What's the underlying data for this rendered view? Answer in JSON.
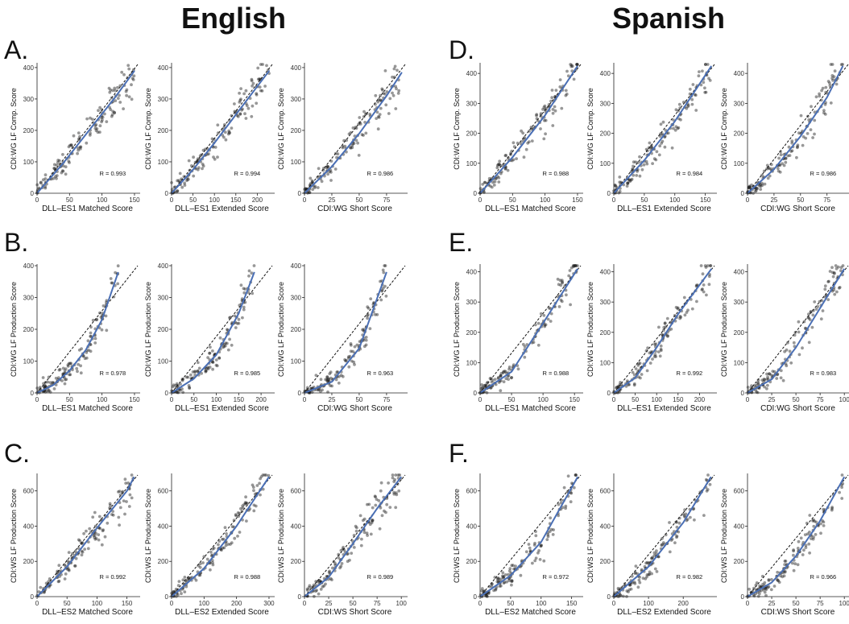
{
  "figure": {
    "headers": [
      {
        "text": "English"
      },
      {
        "text": "Spanish"
      }
    ],
    "panel_letters": [
      "A.",
      "B.",
      "C.",
      "D.",
      "E.",
      "F."
    ],
    "colors": {
      "points": "#1a1a1a",
      "fit": "#4a6fb5",
      "identity": "#111111"
    }
  },
  "chart_data": [
    {
      "type": "scatter",
      "panel": "A",
      "xlabel": "DLL–ES1 Matched Score",
      "ylabel": "CDI:WG LF Comp. Score",
      "xlim": [
        0,
        155
      ],
      "ylim": [
        0,
        410
      ],
      "xticks": [
        0,
        50,
        100,
        150
      ],
      "yticks": [
        0,
        100,
        200,
        300,
        400
      ],
      "r_label": "R = 0.993",
      "points_range": [
        [
          0,
          0
        ],
        [
          150,
          395
        ]
      ],
      "fit": [
        [
          0,
          0
        ],
        [
          40,
          95
        ],
        [
          80,
          200
        ],
        [
          120,
          305
        ],
        [
          150,
          390
        ]
      ]
    },
    {
      "type": "scatter",
      "panel": "A",
      "xlabel": "DLL–ES1 Extended Score",
      "ylabel": "CDI:WG LF Comp. Score",
      "xlim": [
        0,
        235
      ],
      "ylim": [
        0,
        410
      ],
      "xticks": [
        0,
        50,
        100,
        150,
        200
      ],
      "yticks": [
        0,
        100,
        200,
        300,
        400
      ],
      "r_label": "R = 0.994",
      "points_range": [
        [
          0,
          0
        ],
        [
          228,
          395
        ]
      ],
      "fit": [
        [
          0,
          0
        ],
        [
          50,
          75
        ],
        [
          100,
          160
        ],
        [
          150,
          250
        ],
        [
          200,
          340
        ],
        [
          228,
          390
        ]
      ]
    },
    {
      "type": "scatter",
      "panel": "A",
      "xlabel": "CDI:WG Short Score",
      "ylabel": "CDI:WG LF Comp. Score",
      "xlim": [
        0,
        92
      ],
      "ylim": [
        0,
        410
      ],
      "xticks": [
        0,
        25,
        50,
        75
      ],
      "yticks": [
        0,
        100,
        200,
        300,
        400
      ],
      "r_label": "R = 0.986",
      "points_range": [
        [
          0,
          0
        ],
        [
          89,
          395
        ]
      ],
      "fit": [
        [
          0,
          0
        ],
        [
          25,
          85
        ],
        [
          50,
          190
        ],
        [
          75,
          310
        ],
        [
          89,
          385
        ]
      ]
    },
    {
      "type": "scatter",
      "panel": "B",
      "xlabel": "DLL–ES1 Matched Score",
      "ylabel": "CDI:WG LF Production Score",
      "xlim": [
        0,
        155
      ],
      "ylim": [
        0,
        400
      ],
      "xticks": [
        0,
        50,
        100,
        150
      ],
      "yticks": [
        0,
        100,
        200,
        300,
        400
      ],
      "r_label": "R = 0.978",
      "points_range": [
        [
          0,
          0
        ],
        [
          125,
          380
        ]
      ],
      "fit": [
        [
          0,
          0
        ],
        [
          25,
          25
        ],
        [
          50,
          70
        ],
        [
          75,
          135
        ],
        [
          100,
          230
        ],
        [
          125,
          380
        ]
      ]
    },
    {
      "type": "scatter",
      "panel": "B",
      "xlabel": "DLL–ES1 Extended Score",
      "ylabel": "CDI:WG LF Production Score",
      "xlim": [
        0,
        225
      ],
      "ylim": [
        0,
        400
      ],
      "xticks": [
        0,
        50,
        100,
        150,
        200
      ],
      "yticks": [
        0,
        100,
        200,
        300,
        400
      ],
      "r_label": "R = 0.985",
      "points_range": [
        [
          0,
          0
        ],
        [
          185,
          380
        ]
      ],
      "fit": [
        [
          0,
          0
        ],
        [
          50,
          45
        ],
        [
          100,
          120
        ],
        [
          150,
          250
        ],
        [
          185,
          380
        ]
      ]
    },
    {
      "type": "scatter",
      "panel": "B",
      "xlabel": "CDI:WG Short Score",
      "ylabel": "CDI:WG LF Production Score",
      "xlim": [
        0,
        92
      ],
      "ylim": [
        0,
        400
      ],
      "xticks": [
        0,
        25,
        50,
        75
      ],
      "yticks": [
        0,
        100,
        200,
        300,
        400
      ],
      "r_label": "R = 0.963",
      "points_range": [
        [
          0,
          0
        ],
        [
          75,
          380
        ]
      ],
      "fit": [
        [
          0,
          0
        ],
        [
          25,
          35
        ],
        [
          50,
          140
        ],
        [
          75,
          380
        ]
      ]
    },
    {
      "type": "scatter",
      "panel": "C",
      "xlabel": "DLL–ES2 Matched Score",
      "ylabel": "CDI:WS LF Production Score",
      "xlim": [
        0,
        168
      ],
      "ylim": [
        0,
        690
      ],
      "xticks": [
        0,
        50,
        100,
        150
      ],
      "yticks": [
        0,
        200,
        400,
        600
      ],
      "r_label": "R = 0.992",
      "points_range": [
        [
          0,
          0
        ],
        [
          162,
          680
        ]
      ],
      "fit": [
        [
          0,
          0
        ],
        [
          50,
          170
        ],
        [
          100,
          390
        ],
        [
          150,
          600
        ],
        [
          162,
          680
        ]
      ]
    },
    {
      "type": "scatter",
      "panel": "C",
      "xlabel": "DLL–ES2 Extended Score",
      "ylabel": "CDI:WS LF Production Score",
      "xlim": [
        0,
        310
      ],
      "ylim": [
        0,
        690
      ],
      "xticks": [
        0,
        100,
        200,
        300
      ],
      "yticks": [
        0,
        200,
        400,
        600
      ],
      "r_label": "R = 0.988",
      "points_range": [
        [
          0,
          0
        ],
        [
          300,
          680
        ]
      ],
      "fit": [
        [
          0,
          0
        ],
        [
          100,
          160
        ],
        [
          200,
          400
        ],
        [
          300,
          680
        ]
      ]
    },
    {
      "type": "scatter",
      "panel": "C",
      "xlabel": "CDI:WS Short Score",
      "ylabel": "CDI:WS LF Production Score",
      "xlim": [
        0,
        104
      ],
      "ylim": [
        0,
        690
      ],
      "xticks": [
        0,
        25,
        50,
        75,
        100
      ],
      "yticks": [
        0,
        200,
        400,
        600
      ],
      "r_label": "R = 0.989",
      "points_range": [
        [
          0,
          0
        ],
        [
          100,
          680
        ]
      ],
      "fit": [
        [
          0,
          0
        ],
        [
          25,
          110
        ],
        [
          50,
          300
        ],
        [
          75,
          500
        ],
        [
          100,
          680
        ]
      ]
    },
    {
      "type": "scatter",
      "panel": "D",
      "xlabel": "DLL–ES1 Matched Score",
      "ylabel": "CDI:WG LF Comp. Score",
      "xlim": [
        0,
        155
      ],
      "ylim": [
        0,
        430
      ],
      "xticks": [
        0,
        50,
        100,
        150
      ],
      "yticks": [
        0,
        100,
        200,
        300,
        400
      ],
      "r_label": "R = 0.988",
      "points_range": [
        [
          0,
          0
        ],
        [
          150,
          425
        ]
      ],
      "fit": [
        [
          0,
          0
        ],
        [
          50,
          120
        ],
        [
          100,
          260
        ],
        [
          150,
          425
        ]
      ]
    },
    {
      "type": "scatter",
      "panel": "D",
      "xlabel": "DLL–ES1 Extended Score",
      "ylabel": "CDI:WG LF Comp. Score",
      "xlim": [
        0,
        165
      ],
      "ylim": [
        0,
        430
      ],
      "xticks": [
        0,
        50,
        100,
        150
      ],
      "yticks": [
        0,
        100,
        200,
        300,
        400
      ],
      "r_label": "R = 0.984",
      "points_range": [
        [
          0,
          0
        ],
        [
          160,
          425
        ]
      ],
      "fit": [
        [
          0,
          0
        ],
        [
          50,
          110
        ],
        [
          100,
          240
        ],
        [
          160,
          425
        ]
      ]
    },
    {
      "type": "scatter",
      "panel": "D",
      "xlabel": "CDI:WG Short Score",
      "ylabel": "CDI:WG LF Comp. Score",
      "xlim": [
        0,
        95
      ],
      "ylim": [
        0,
        430
      ],
      "xticks": [
        0,
        25,
        50,
        75
      ],
      "yticks": [
        0,
        100,
        200,
        300,
        400
      ],
      "r_label": "R = 0.986",
      "points_range": [
        [
          0,
          0
        ],
        [
          90,
          425
        ]
      ],
      "fit": [
        [
          0,
          0
        ],
        [
          25,
          80
        ],
        [
          50,
          190
        ],
        [
          75,
          320
        ],
        [
          90,
          425
        ]
      ]
    },
    {
      "type": "scatter",
      "panel": "E",
      "xlabel": "DLL–ES1 Matched Score",
      "ylabel": "CDI:WG LF Production Score",
      "xlim": [
        0,
        160
      ],
      "ylim": [
        0,
        420
      ],
      "xticks": [
        0,
        50,
        100,
        150
      ],
      "yticks": [
        0,
        100,
        200,
        300,
        400
      ],
      "r_label": "R = 0.988",
      "points_range": [
        [
          0,
          0
        ],
        [
          155,
          410
        ]
      ],
      "fit": [
        [
          0,
          0
        ],
        [
          50,
          70
        ],
        [
          100,
          230
        ],
        [
          155,
          410
        ]
      ]
    },
    {
      "type": "scatter",
      "panel": "E",
      "xlabel": "DLL–ES1 Extended Score",
      "ylabel": "CDI:WG LF Production Score",
      "xlim": [
        0,
        235
      ],
      "ylim": [
        0,
        420
      ],
      "xticks": [
        0,
        50,
        100,
        150,
        200
      ],
      "yticks": [
        0,
        100,
        200,
        300,
        400
      ],
      "r_label": "R = 0.992",
      "points_range": [
        [
          0,
          0
        ],
        [
          228,
          410
        ]
      ],
      "fit": [
        [
          0,
          0
        ],
        [
          50,
          50
        ],
        [
          100,
          150
        ],
        [
          150,
          260
        ],
        [
          228,
          410
        ]
      ]
    },
    {
      "type": "scatter",
      "panel": "E",
      "xlabel": "CDI:WG Short Score",
      "ylabel": "CDI:WG LF Production Score",
      "xlim": [
        0,
        104
      ],
      "ylim": [
        0,
        420
      ],
      "xticks": [
        0,
        25,
        50,
        75,
        100
      ],
      "yticks": [
        0,
        100,
        200,
        300,
        400
      ],
      "r_label": "R = 0.983",
      "points_range": [
        [
          0,
          0
        ],
        [
          100,
          410
        ]
      ],
      "fit": [
        [
          0,
          0
        ],
        [
          25,
          45
        ],
        [
          50,
          150
        ],
        [
          75,
          280
        ],
        [
          100,
          410
        ]
      ]
    },
    {
      "type": "scatter",
      "panel": "F",
      "xlabel": "DLL–ES2 Matched Score",
      "ylabel": "CDI:WS LF Production Score",
      "xlim": [
        0,
        165
      ],
      "ylim": [
        0,
        690
      ],
      "xticks": [
        0,
        50,
        100,
        150
      ],
      "yticks": [
        0,
        200,
        400,
        600
      ],
      "r_label": "R = 0.972",
      "points_range": [
        [
          0,
          0
        ],
        [
          160,
          680
        ]
      ],
      "fit": [
        [
          0,
          0
        ],
        [
          50,
          120
        ],
        [
          100,
          310
        ],
        [
          160,
          680
        ]
      ]
    },
    {
      "type": "scatter",
      "panel": "F",
      "xlabel": "DLL–ES2 Extended Score",
      "ylabel": "CDI:WS LF Production Score",
      "xlim": [
        0,
        290
      ],
      "ylim": [
        0,
        690
      ],
      "xticks": [
        0,
        100,
        200
      ],
      "yticks": [
        0,
        200,
        400,
        600
      ],
      "r_label": "R = 0.982",
      "points_range": [
        [
          0,
          0
        ],
        [
          280,
          680
        ]
      ],
      "fit": [
        [
          0,
          0
        ],
        [
          100,
          170
        ],
        [
          200,
          420
        ],
        [
          280,
          680
        ]
      ]
    },
    {
      "type": "scatter",
      "panel": "F",
      "xlabel": "CDI:WS Short Score",
      "ylabel": "CDI:WS LF Production Score",
      "xlim": [
        0,
        104
      ],
      "ylim": [
        0,
        690
      ],
      "xticks": [
        0,
        25,
        50,
        75,
        100
      ],
      "yticks": [
        0,
        200,
        400,
        600
      ],
      "r_label": "R = 0.966",
      "points_range": [
        [
          0,
          0
        ],
        [
          100,
          680
        ]
      ],
      "fit": [
        [
          0,
          0
        ],
        [
          25,
          80
        ],
        [
          50,
          230
        ],
        [
          75,
          430
        ],
        [
          100,
          680
        ]
      ]
    }
  ]
}
